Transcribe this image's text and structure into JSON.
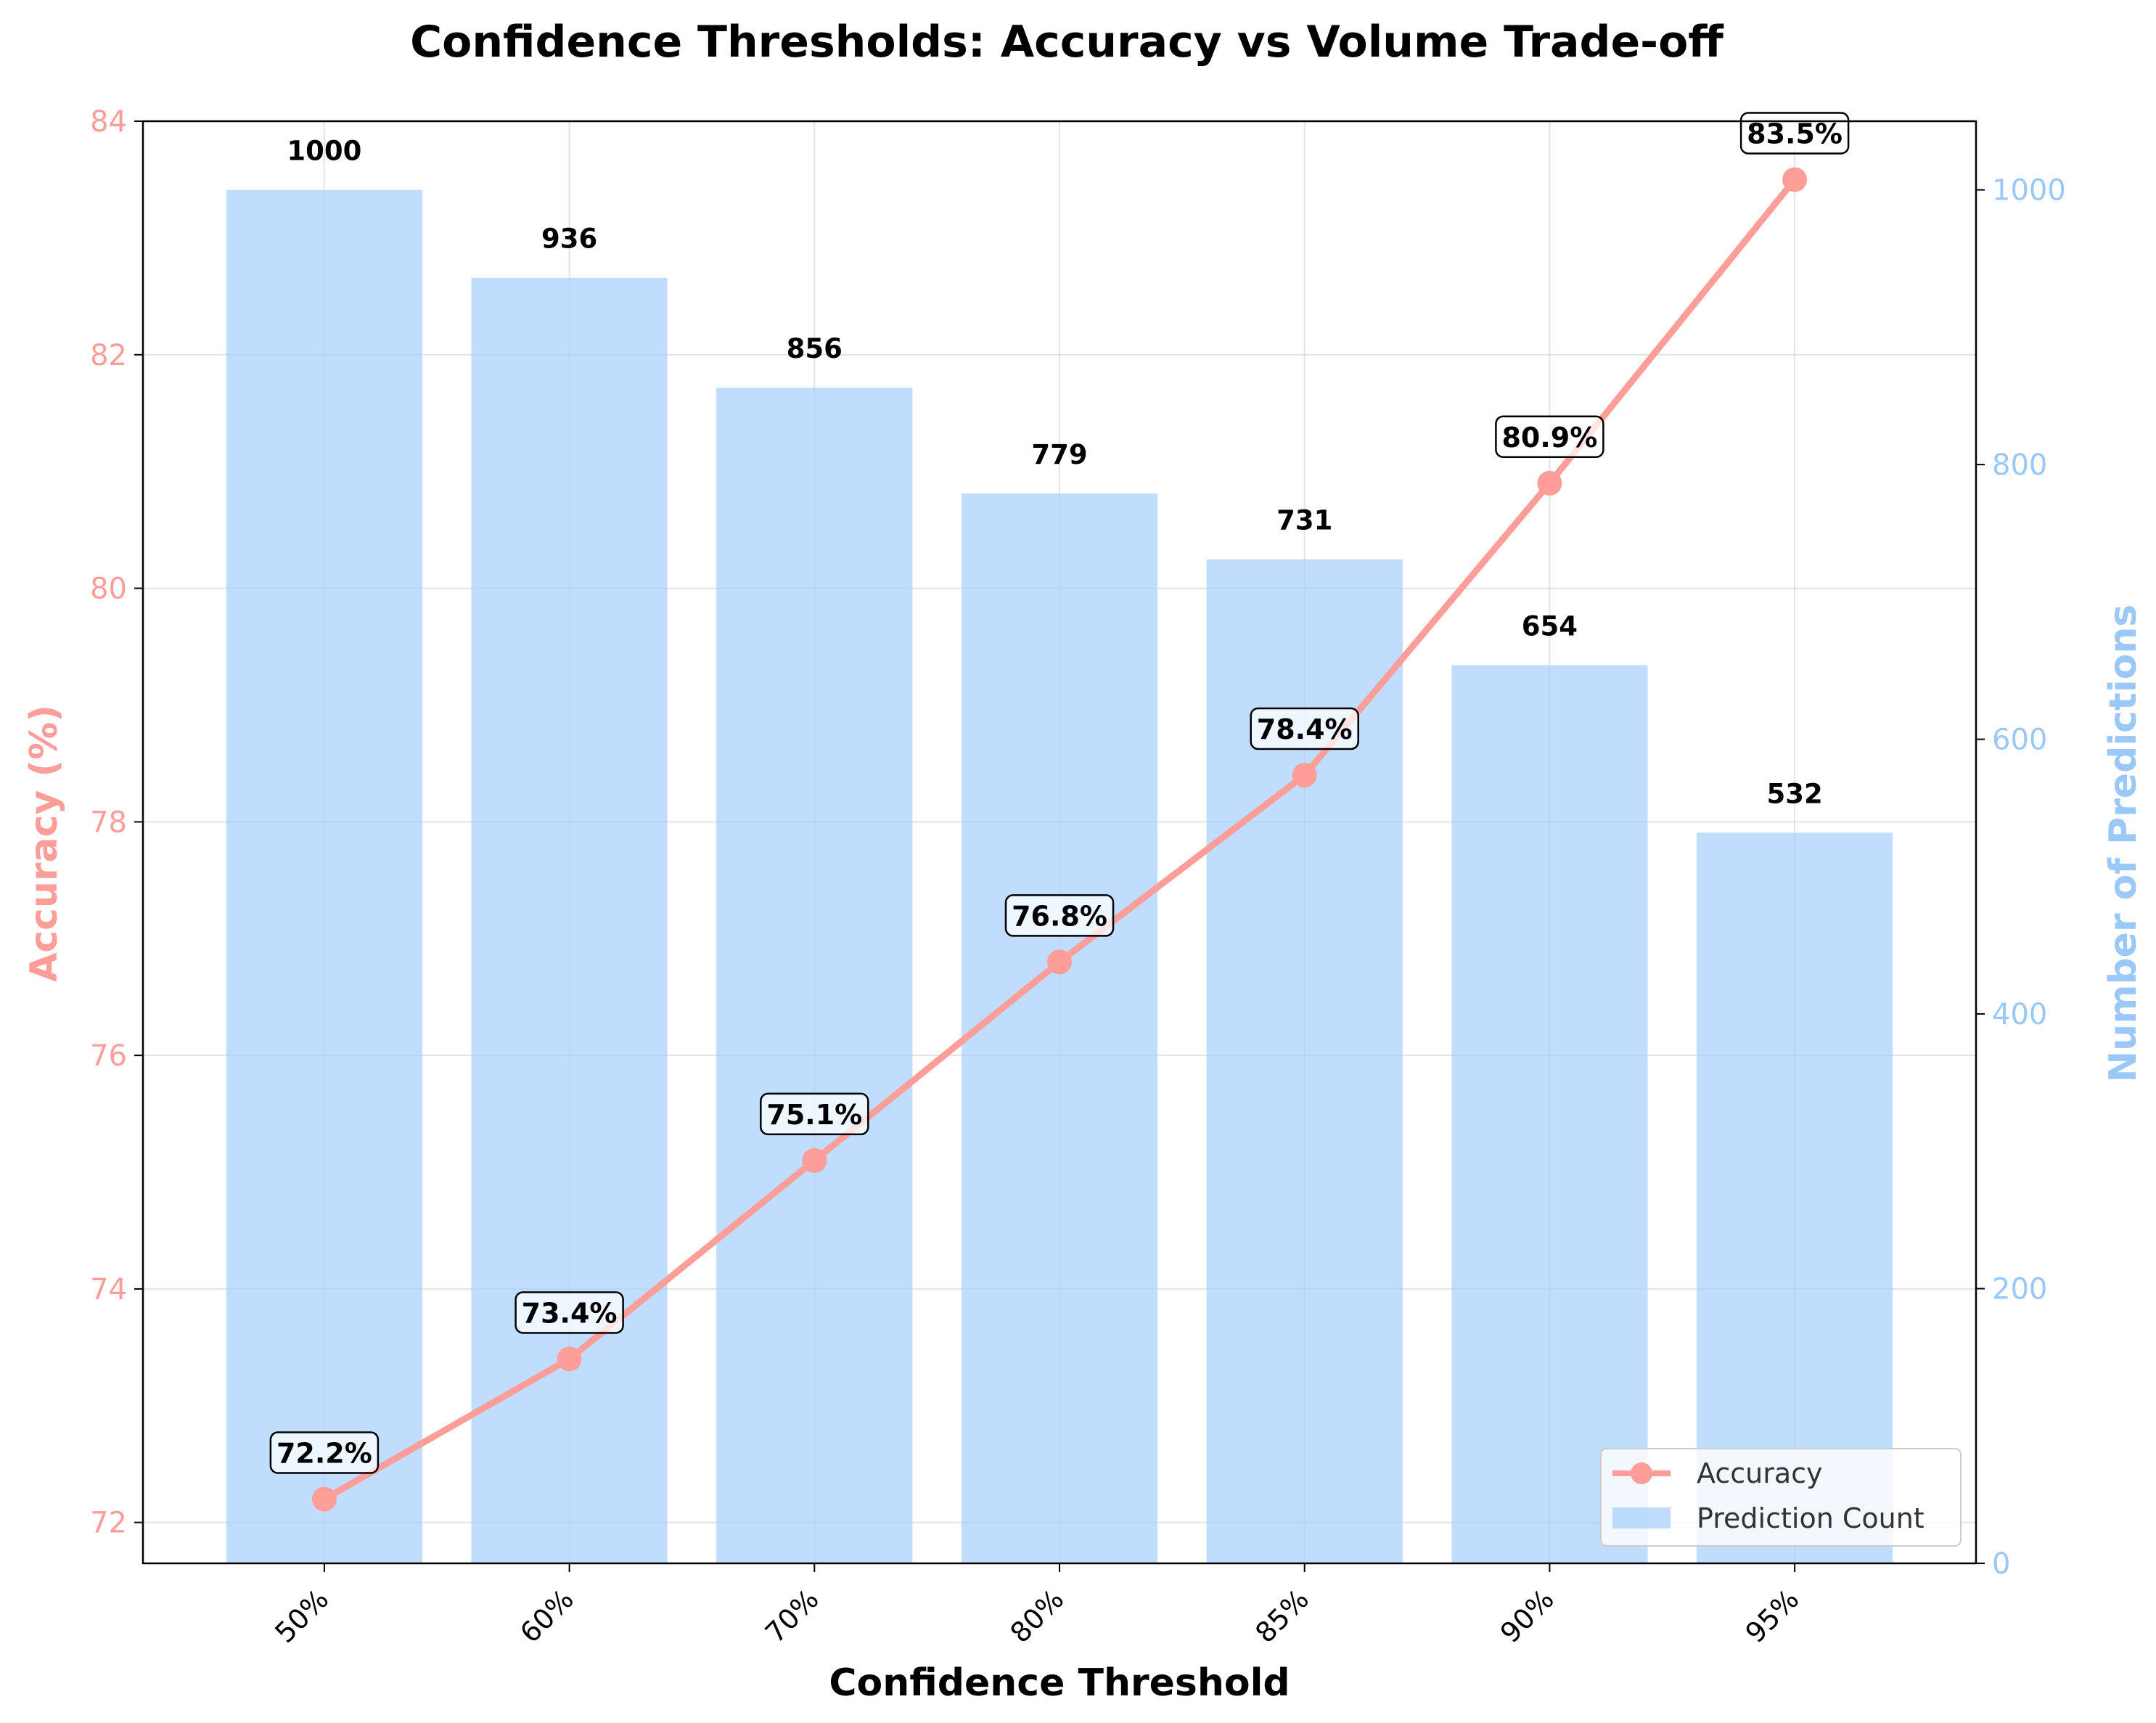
{
  "chart_data": {
    "type": "bar",
    "title": "Confidence Thresholds: Accuracy vs Volume Trade-off",
    "xlabel": "Confidence Threshold",
    "categories": [
      "50%",
      "60%",
      "70%",
      "80%",
      "85%",
      "90%",
      "95%"
    ],
    "y_left": {
      "label": "Accuracy (%)",
      "range": [
        71.65,
        84.0
      ],
      "ticks": [
        "72",
        "74",
        "76",
        "78",
        "80",
        "82",
        "84"
      ],
      "color": "#ff9e99"
    },
    "y_right": {
      "label": "Number of Predictions",
      "range": [
        0,
        1050
      ],
      "ticks": [
        "0",
        "200",
        "400",
        "600",
        "800",
        "1000"
      ],
      "color": "#99c8f9"
    },
    "series": [
      {
        "name": "Accuracy",
        "type": "line",
        "axis": "left",
        "values": [
          72.2,
          73.4,
          75.1,
          76.8,
          78.4,
          80.9,
          83.5
        ],
        "labels": [
          "72.2%",
          "73.4%",
          "75.1%",
          "76.8%",
          "78.4%",
          "80.9%",
          "83.5%"
        ],
        "color": "#ff9e99"
      },
      {
        "name": "Prediction Count",
        "type": "bar",
        "axis": "right",
        "values": [
          1000,
          936,
          856,
          779,
          731,
          654,
          532
        ],
        "labels": [
          "1000",
          "936",
          "856",
          "779",
          "731",
          "654",
          "532"
        ],
        "color": "#a8d0fc"
      }
    ],
    "grid": true,
    "legend_position": "bottom-right"
  }
}
